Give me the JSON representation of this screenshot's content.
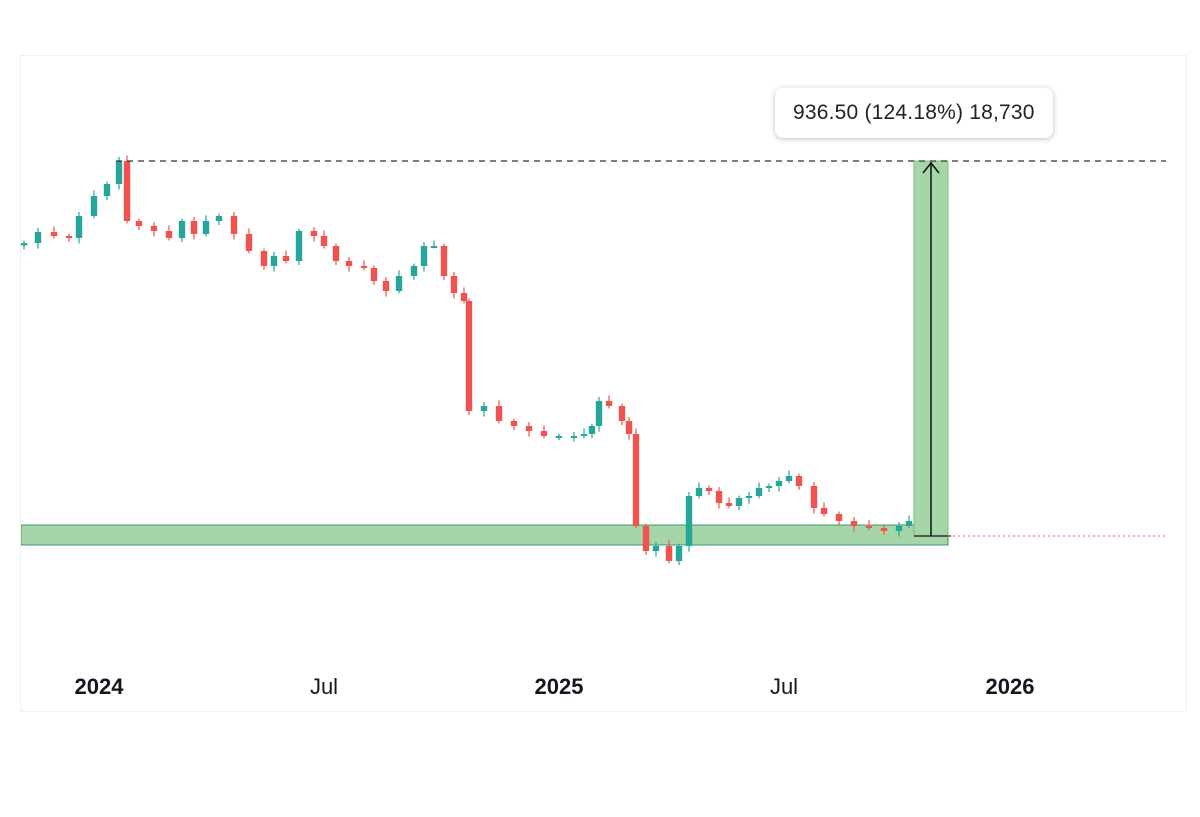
{
  "chart_data": {
    "type": "candlestick",
    "x_ticks": [
      {
        "label": "2024",
        "bold": true
      },
      {
        "label": "Jul",
        "bold": false
      },
      {
        "label": "2025",
        "bold": true
      },
      {
        "label": "Jul",
        "bold": false
      },
      {
        "label": "2026",
        "bold": true
      }
    ],
    "measurement": {
      "text": "936.50 (124.18%) 18,730",
      "change": 936.5,
      "percent": 124.18,
      "bars": 18730
    },
    "colors": {
      "up": "#26a69a",
      "down": "#ef5350",
      "support_zone_fill": "#a5d6a7",
      "support_zone_border": "#3f9a6e",
      "measure_fill": "#a5d6a7",
      "guide_line": "#333333",
      "current_price_line": "#ef5350"
    }
  }
}
